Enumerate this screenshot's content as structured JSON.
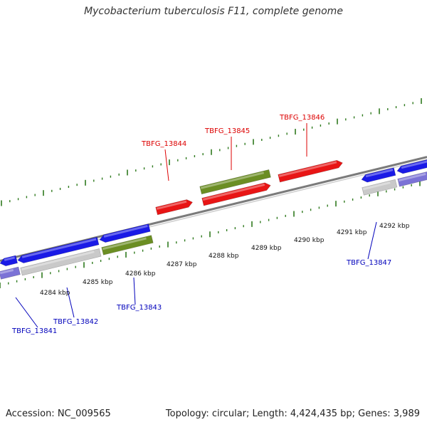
{
  "title": "Mycobacterium tuberculosis F11, complete genome",
  "footer": {
    "accession": "Accession: NC_009565",
    "summary": "Topology: circular; Length: 4,424,435 bp; Genes: 3,989"
  },
  "colors": {
    "backbone": "#7b7b7b",
    "tick": "#2f7a1e",
    "gene_blue": "#1a1ae6",
    "gene_red": "#e81515",
    "gene_green": "#6b8e23",
    "gene_grey": "#c9c9c9",
    "gene_lavender": "#7b72d6",
    "label_red": "#dd0000",
    "label_blue": "#0000bb"
  },
  "scale_labels": [
    "4284 kbp",
    "4285 kbp",
    "4286 kbp",
    "4287 kbp",
    "4288 kbp",
    "4289 kbp",
    "4290 kbp",
    "4291 kbp",
    "4292 kbp"
  ],
  "gene_labels": {
    "top": [
      "TBFG_13844",
      "TBFG_13845",
      "TBFG_13846"
    ],
    "bottom": [
      "TBFG_13841",
      "TBFG_13842",
      "TBFG_13843",
      "TBFG_13847"
    ]
  }
}
